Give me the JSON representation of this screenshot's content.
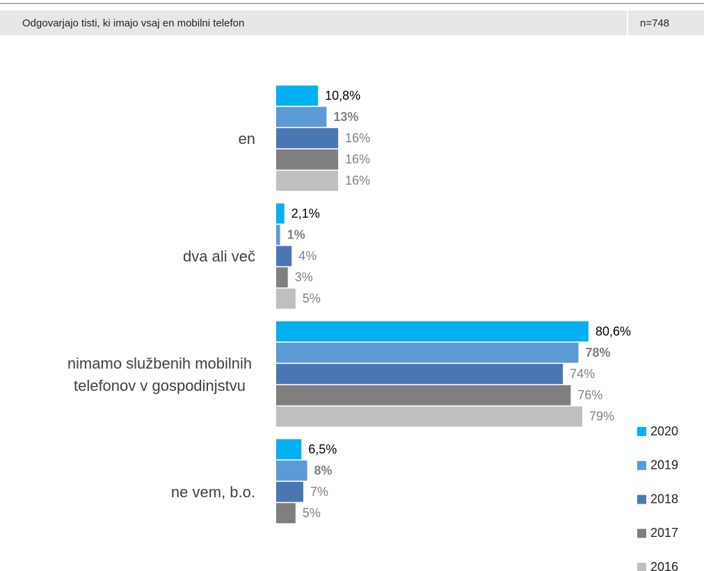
{
  "header": {
    "text": "Odgovarjajo tisti, ki imajo vsaj en mobilni telefon",
    "n": "n=748"
  },
  "chart_data": {
    "type": "hbar",
    "categories": [
      "en",
      "dva ali več",
      "nimamo službenih mobilnih telefonov v gospodinjstvu",
      "ne vem, b.o."
    ],
    "series": [
      {
        "name": "2020",
        "color": "#00b0f0",
        "values": [
          10.8,
          2.1,
          80.6,
          6.5
        ],
        "value_labels": [
          "10,8%",
          "2,1%",
          "80,6%",
          "6,5%"
        ]
      },
      {
        "name": "2019",
        "color": "#5b9bd5",
        "values": [
          13,
          1,
          78,
          8
        ],
        "value_labels": [
          "13%",
          "1%",
          "78%",
          "8%"
        ]
      },
      {
        "name": "2018",
        "color": "#4a76b4",
        "values": [
          16,
          4,
          74,
          7
        ],
        "value_labels": [
          "16%",
          "4%",
          "74%",
          "7%"
        ]
      },
      {
        "name": "2017",
        "color": "#7f7f7f",
        "values": [
          16,
          3,
          76,
          5
        ],
        "value_labels": [
          "16%",
          "3%",
          "76%",
          "5%"
        ]
      },
      {
        "name": "2016",
        "color": "#bfbfbf",
        "values": [
          16,
          5,
          79,
          null
        ],
        "value_labels": [
          "16%",
          "5%",
          "79%",
          null
        ]
      }
    ]
  }
}
